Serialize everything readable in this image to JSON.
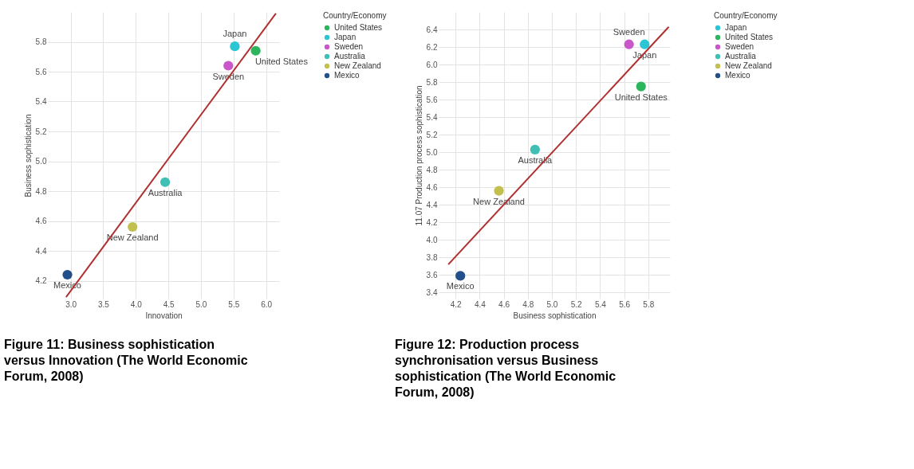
{
  "chart_data": [
    {
      "type": "scatter",
      "xlabel": "Innovation",
      "ylabel": "Business sophistication",
      "legend_title": "Country/Economy",
      "legend": "right",
      "grid": true,
      "marker": "circle",
      "xlim": [
        2.65,
        6.2
      ],
      "xticks": [
        {
          "value": 3,
          "label": "3.0"
        },
        3.5,
        {
          "value": 4,
          "label": "4.0"
        },
        4.5,
        {
          "value": 5,
          "label": "5.0"
        },
        5.5,
        {
          "value": 6,
          "label": "6.0"
        }
      ],
      "ylim": [
        4.08,
        6.0
      ],
      "yticks": [
        4.2,
        4.4,
        4.6,
        4.8,
        {
          "value": 5,
          "label": "5.0"
        },
        5.2,
        5.4,
        5.6,
        5.8
      ],
      "series": [
        {
          "name": "United States",
          "color": "#2db55d",
          "x": [
            5.84
          ],
          "values": [
            5.74
          ]
        },
        {
          "name": "Japan",
          "color": "#2ac6d4",
          "x": [
            5.52
          ],
          "values": [
            5.77
          ]
        },
        {
          "name": "Sweden",
          "color": "#c957c9",
          "x": [
            5.42
          ],
          "values": [
            5.64
          ]
        },
        {
          "name": "Australia",
          "color": "#40bfb5",
          "x": [
            4.45
          ],
          "values": [
            4.86
          ]
        },
        {
          "name": "New Zealand",
          "color": "#c4c050",
          "x": [
            3.95
          ],
          "values": [
            4.56
          ]
        },
        {
          "name": "Mexico",
          "color": "#23508a",
          "x": [
            2.95
          ],
          "values": [
            4.24
          ]
        },
        {
          "type": "line",
          "marker": "none",
          "color": "#b03030",
          "x": [
            2.93,
            6.15
          ],
          "values": [
            4.09,
            5.99
          ]
        }
      ],
      "annotations": [
        "Figure 11: Business sophistication versus Innovation (The World Economic Forum, 2008)"
      ]
    },
    {
      "type": "scatter",
      "xlabel": "Business sophistication",
      "ylabel": "11.07 Production process sophistication",
      "legend_title": "Country/Economy",
      "legend": "right",
      "grid": true,
      "marker": "circle",
      "xlim": [
        4.06,
        5.98
      ],
      "xticks": [
        4.2,
        4.4,
        4.6,
        4.8,
        {
          "value": 5,
          "label": "5.0"
        },
        5.2,
        5.4,
        5.6,
        5.8
      ],
      "ylim": [
        3.33,
        6.6
      ],
      "yticks": [
        3.4,
        3.6,
        3.8,
        {
          "value": 4,
          "label": "4.0"
        },
        4.2,
        4.4,
        4.6,
        4.8,
        {
          "value": 5,
          "label": "5.0"
        },
        5.2,
        5.4,
        5.6,
        5.8,
        {
          "value": 6,
          "label": "6.0"
        },
        6.2,
        6.4
      ],
      "series": [
        {
          "name": "Japan",
          "color": "#2ac6d4",
          "x": [
            5.77
          ],
          "values": [
            6.23
          ]
        },
        {
          "name": "United States",
          "color": "#2db55d",
          "x": [
            5.74
          ],
          "values": [
            5.75
          ]
        },
        {
          "name": "Sweden",
          "color": "#c957c9",
          "x": [
            5.64
          ],
          "values": [
            6.23
          ]
        },
        {
          "name": "Australia",
          "color": "#40bfb5",
          "x": [
            4.86
          ],
          "values": [
            5.03
          ]
        },
        {
          "name": "New Zealand",
          "color": "#c4c050",
          "x": [
            4.56
          ],
          "values": [
            4.56
          ]
        },
        {
          "name": "Mexico",
          "color": "#23508a",
          "x": [
            4.24
          ],
          "values": [
            3.59
          ]
        },
        {
          "type": "line",
          "marker": "none",
          "color": "#b03030",
          "x": [
            4.14,
            5.97
          ],
          "values": [
            3.72,
            6.43
          ]
        }
      ],
      "annotations": [
        "Figure 12: Production process synchronisation versus Business sophistication (The World Economic Forum, 2008)"
      ]
    }
  ]
}
